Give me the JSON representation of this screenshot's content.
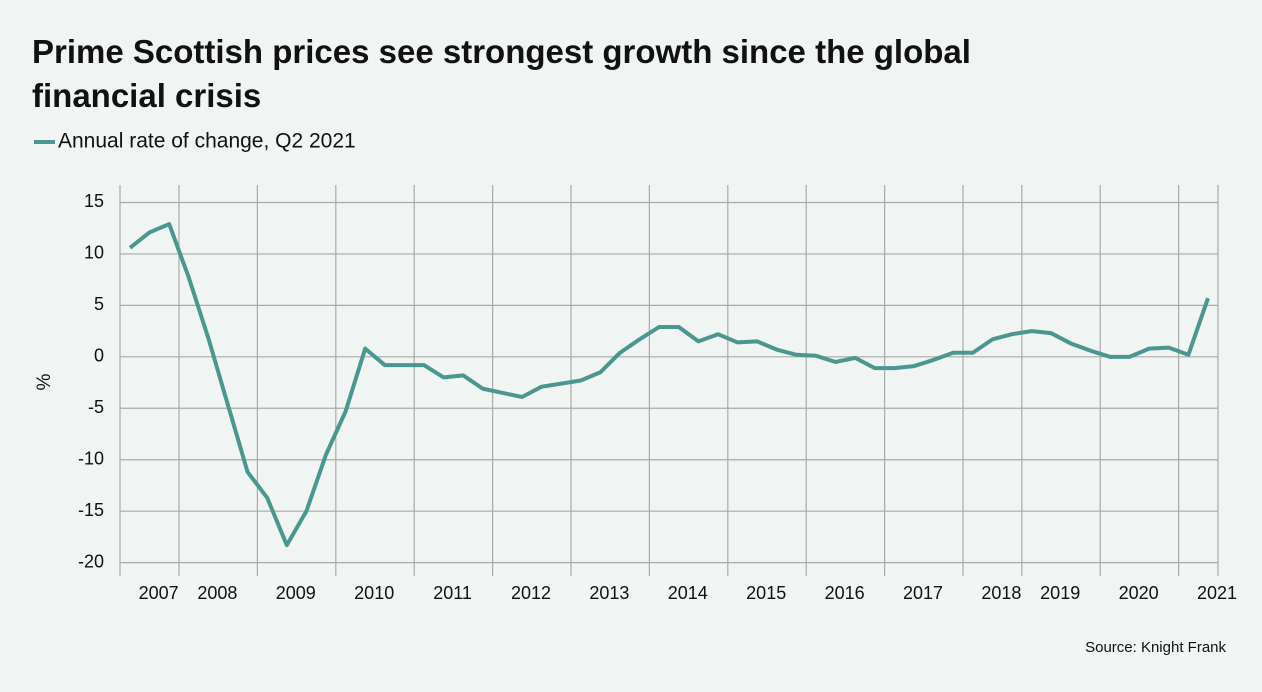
{
  "chart_data": {
    "type": "line",
    "title": "Prime Scottish prices see strongest growth since the global financial crisis",
    "y_label": "%",
    "source": "Source: Knight Frank",
    "categories": [
      null,
      "2007",
      null,
      null,
      "2008",
      null,
      null,
      null,
      "2009",
      null,
      null,
      null,
      "2010",
      null,
      null,
      null,
      "2011",
      null,
      null,
      null,
      "2012",
      null,
      null,
      null,
      "2013",
      null,
      null,
      null,
      "2014",
      null,
      null,
      null,
      "2015",
      null,
      null,
      null,
      "2016",
      null,
      null,
      null,
      "2017",
      null,
      null,
      null,
      "2018",
      null,
      null,
      "2019",
      null,
      null,
      null,
      "2020",
      null,
      null,
      null,
      "2021"
    ],
    "series": [
      {
        "name": "Annual rate of change, Q2 2021",
        "color": "#4a9691",
        "values": [
          10.6,
          12.1,
          12.9,
          7.7,
          1.8,
          -4.7,
          -11.2,
          -13.7,
          -18.3,
          -15.0,
          -9.5,
          -5.3,
          0.8,
          -0.8,
          -0.8,
          -0.8,
          -2.0,
          -1.8,
          -3.1,
          -3.5,
          -3.9,
          -2.9,
          -2.6,
          -2.3,
          -1.5,
          0.4,
          1.7,
          2.9,
          2.9,
          1.5,
          2.2,
          1.4,
          1.5,
          0.7,
          0.2,
          0.1,
          -0.5,
          -0.1,
          -1.1,
          -1.1,
          -0.9,
          -0.3,
          0.4,
          0.4,
          1.7,
          2.2,
          2.5,
          2.3,
          1.3,
          0.6,
          0.0,
          0.0,
          0.8,
          0.9,
          0.2,
          5.7
        ]
      }
    ],
    "ylim": [
      -21.3,
      16.7
    ],
    "yticks": [
      15,
      10,
      5,
      0,
      -5,
      -10,
      -15,
      -20
    ],
    "grid": true
  }
}
